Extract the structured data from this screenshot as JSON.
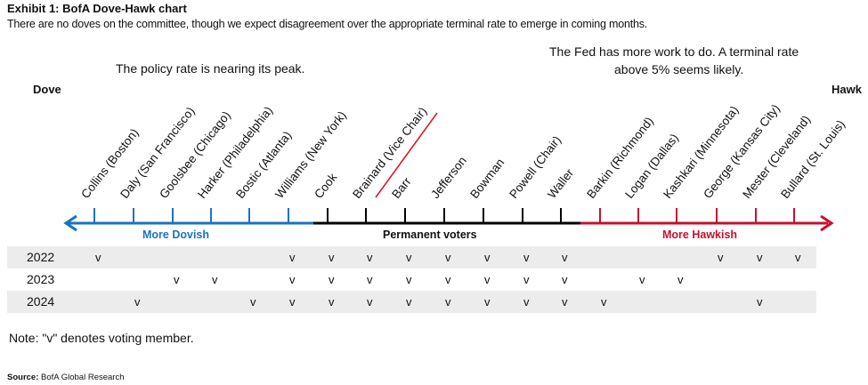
{
  "title": "Exhibit 1: BofA Dove-Hawk chart",
  "subtitle": "There are no doves on the committee, though we expect disagreement over the appropriate terminal rate to emerge in coming months.",
  "annotation_left": "The policy rate is nearing its peak.",
  "annotation_right_1": "The Fed has more work to do. A terminal rate",
  "annotation_right_2": "above 5% seems likely.",
  "dove_label": "Dove",
  "hawk_label": "Hawk",
  "axis_segments": [
    {
      "label": "More Dovish",
      "color": "#1a73c0"
    },
    {
      "label": "Permanent voters",
      "color": "#000000"
    },
    {
      "label": "More Hawkish",
      "color": "#c8102e"
    }
  ],
  "members": [
    {
      "name": "Collins (Boston)",
      "group": 0
    },
    {
      "name": "Daly (San Francisco)",
      "group": 0
    },
    {
      "name": "Goolsbee (Chicago)",
      "group": 0
    },
    {
      "name": "Harker (Philadelphia)",
      "group": 0
    },
    {
      "name": "Bostic (Atlanta)",
      "group": 0
    },
    {
      "name": "Williams (New York)",
      "group": 0
    },
    {
      "name": "Cook",
      "group": 1
    },
    {
      "name": "Brainard (Vice Chair)",
      "group": 1,
      "struck": true
    },
    {
      "name": "Barr",
      "group": 1
    },
    {
      "name": "Jefferson",
      "group": 1
    },
    {
      "name": "Bowman",
      "group": 1
    },
    {
      "name": "Powell (Chair)",
      "group": 1
    },
    {
      "name": "Waller",
      "group": 1
    },
    {
      "name": "Barkin (Richmond)",
      "group": 2
    },
    {
      "name": "Logan (Dallas)",
      "group": 2
    },
    {
      "name": "Kashkari (Minnesota)",
      "group": 2
    },
    {
      "name": "George (Kansas City)",
      "group": 2
    },
    {
      "name": "Mester (Cleveland)",
      "group": 2
    },
    {
      "name": "Bullard (St. Louis)",
      "group": 2
    }
  ],
  "vote_mark": "v",
  "years": [
    {
      "year": "2022",
      "voters": [
        0,
        5,
        6,
        7,
        8,
        9,
        10,
        11,
        12,
        16,
        17,
        18
      ]
    },
    {
      "year": "2023",
      "voters": [
        2,
        3,
        5,
        6,
        7,
        8,
        9,
        10,
        11,
        12,
        14,
        15
      ]
    },
    {
      "year": "2024",
      "voters": [
        1,
        4,
        5,
        6,
        7,
        8,
        9,
        10,
        11,
        12,
        13,
        17
      ]
    }
  ],
  "note": "Note: \"v\" denotes voting member.",
  "source_label": "Source:",
  "source": "BofA Global Research"
}
